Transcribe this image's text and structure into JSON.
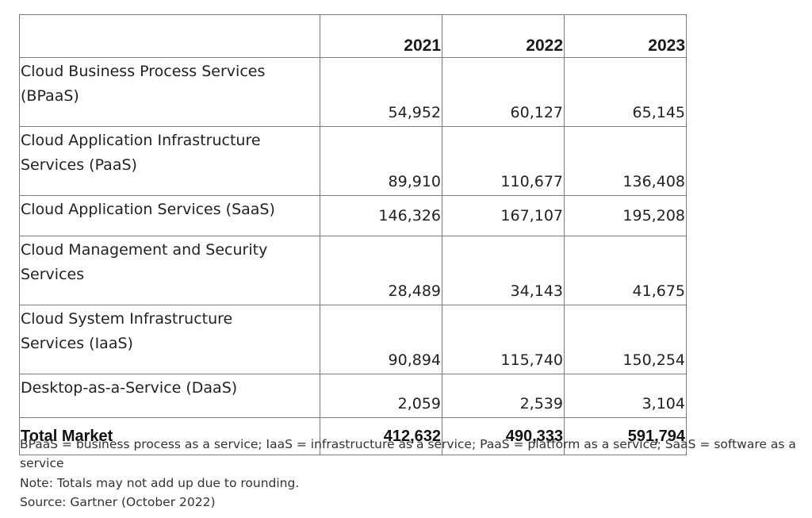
{
  "chart_data": {
    "type": "table",
    "columns": [
      "",
      "2021",
      "2022",
      "2023"
    ],
    "rows": [
      {
        "label_lines": [
          "Cloud Business Process Services",
          "(BPaaS)"
        ],
        "values": [
          "54,952",
          "60,127",
          "65,145"
        ]
      },
      {
        "label_lines": [
          "Cloud Application Infrastructure",
          "Services (PaaS)"
        ],
        "values": [
          "89,910",
          "110,677",
          "136,408"
        ]
      },
      {
        "label_lines": [
          "Cloud Application Services (SaaS)"
        ],
        "values": [
          "146,326",
          "167,107",
          "195,208"
        ]
      },
      {
        "label_lines": [
          "Cloud Management and Security",
          "Services"
        ],
        "values": [
          "28,489",
          "34,143",
          "41,675"
        ]
      },
      {
        "label_lines": [
          "Cloud System Infrastructure",
          "Services (IaaS)"
        ],
        "values": [
          "90,894",
          "115,740",
          "150,254"
        ]
      },
      {
        "label_lines": [
          "Desktop-as-a-Service (DaaS)"
        ],
        "values": [
          "2,059",
          "2,539",
          "3,104"
        ]
      }
    ],
    "total": {
      "label": "Total Market",
      "values": [
        "412,632",
        "490,333",
        "591,794"
      ]
    }
  },
  "footnotes": {
    "abbrev_line1": "BPaaS = business process as a service; IaaS = infrastructure as a service; PaaS = platform as a service; SaaS = software as a",
    "abbrev_line2": "service",
    "note": "Note: Totals may not add up due to rounding.",
    "source": "Source: Gartner (October 2022)"
  }
}
